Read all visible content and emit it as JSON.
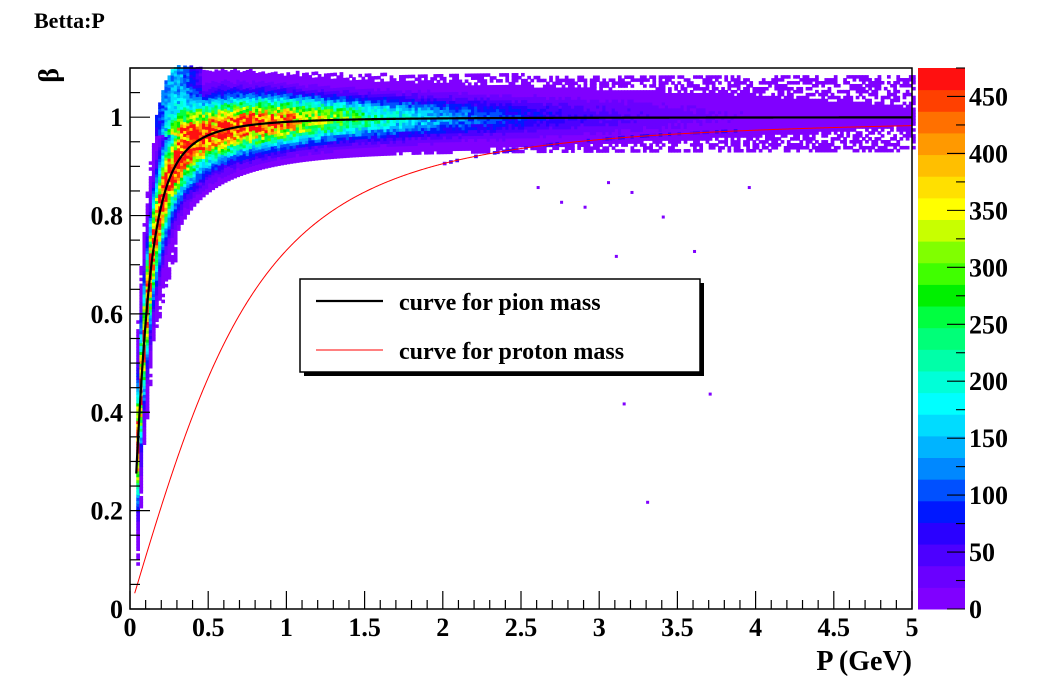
{
  "chart_data": {
    "type": "heatmap",
    "title": "Betta:P",
    "xlabel": "P (GeV)",
    "ylabel": "β",
    "xlim": [
      0,
      5
    ],
    "ylim": [
      0,
      1.1
    ],
    "x_ticks": [
      "0",
      "0.5",
      "1",
      "1.5",
      "2",
      "2.5",
      "3",
      "3.5",
      "4",
      "4.5",
      "5"
    ],
    "y_ticks": [
      "0",
      "0.2",
      "0.4",
      "0.6",
      "0.8",
      "1"
    ],
    "color_scale": {
      "min": 0,
      "max": 475,
      "ticks": [
        "0",
        "50",
        "100",
        "150",
        "200",
        "250",
        "300",
        "350",
        "400",
        "450"
      ],
      "colors": [
        "#8000ff",
        "#6a00ff",
        "#4c00ff",
        "#2a00ff",
        "#0018ff",
        "#0050ff",
        "#0088ff",
        "#00b4ff",
        "#00dcff",
        "#00ffff",
        "#00ffd8",
        "#00ffa8",
        "#00ff78",
        "#00ff40",
        "#00f000",
        "#40ff00",
        "#80ff00",
        "#c8ff00",
        "#ffff00",
        "#ffe000",
        "#ffbf00",
        "#ff9900",
        "#ff7000",
        "#ff4000",
        "#ff1010"
      ]
    },
    "series": [
      {
        "name": "curve for pion mass",
        "mass_gev": 0.1396,
        "color": "#000000",
        "x_start": 0.04
      },
      {
        "name": "curve for proton mass",
        "mass_gev": 0.9383,
        "color": "#ff0000",
        "x_start": 0.03
      }
    ],
    "density_band": {
      "description_values": {
        "x_range": [
          0.04,
          5
        ],
        "peak_region_x": [
          0.1,
          0.35
        ],
        "peak_region_y": [
          0.95,
          1.08
        ],
        "band_center": "pion curve",
        "proton_band_visible_from_x": 2.0
      }
    },
    "legend": {
      "placement": "center",
      "entries": [
        "curve for pion mass",
        "curve for proton mass"
      ]
    },
    "grid": false
  }
}
